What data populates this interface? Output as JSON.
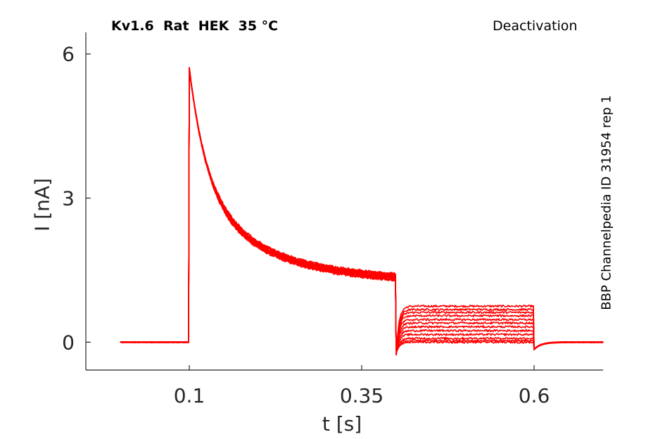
{
  "chart_data": {
    "type": "line",
    "title": "Kv1.6  Rat  HEK  35 °C",
    "subtitle": "Deactivation",
    "side_text": "BBP Channelpedia ID 31954 rep 1",
    "xlabel": "t [s]",
    "ylabel": "I [nA]",
    "xlim": [
      -0.05,
      0.7
    ],
    "ylim": [
      -0.58,
      6.45
    ],
    "xticks": [
      0.1,
      0.35,
      0.6
    ],
    "xtick_labels": [
      "0.1",
      "0.35",
      "0.6"
    ],
    "yticks": [
      0,
      3,
      6
    ],
    "ytick_labels": [
      "0",
      "3",
      "6"
    ],
    "grid": false,
    "legend": "none",
    "color": "#ff0000",
    "protocol": {
      "baseline_end": 0.1,
      "activation_end": 0.4,
      "deactivation_end": 0.6,
      "record_start": 0.0,
      "record_end": 0.7,
      "baseline": 0.0,
      "activation_peak": 5.7,
      "activation_end_level": 1.38
    },
    "series": [
      {
        "values": {
          "tail_level": 0.75
        }
      },
      {
        "values": {
          "tail_level": 0.68
        }
      },
      {
        "values": {
          "tail_level": 0.62
        }
      },
      {
        "values": {
          "tail_level": 0.55
        }
      },
      {
        "values": {
          "tail_level": 0.47
        }
      },
      {
        "values": {
          "tail_level": 0.4
        }
      },
      {
        "values": {
          "tail_level": 0.32
        }
      },
      {
        "values": {
          "tail_level": 0.24
        }
      },
      {
        "values": {
          "tail_level": 0.16
        }
      },
      {
        "values": {
          "tail_level": 0.08
        }
      },
      {
        "values": {
          "tail_level": 0.03
        }
      },
      {
        "values": {
          "tail_level": 0.0
        }
      }
    ]
  }
}
